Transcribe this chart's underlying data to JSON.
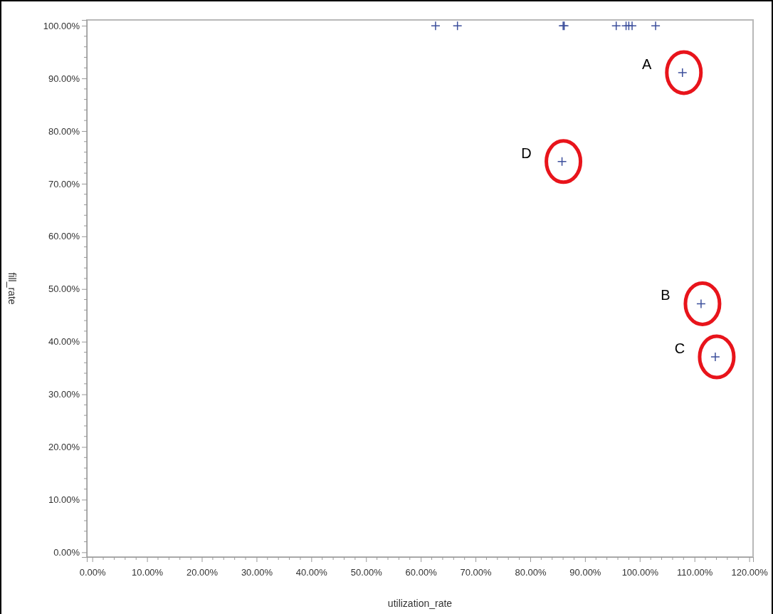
{
  "chart_data": {
    "type": "scatter",
    "xlabel": "utilization_rate",
    "ylabel": "fill_rate",
    "marker": "cross",
    "grid": false,
    "x": [
      62.7,
      66.7,
      86.0,
      86.2,
      95.7,
      97.5,
      98.0,
      98.6,
      102.9,
      107.8,
      85.8,
      111.2,
      113.8
    ],
    "series": [
      {
        "color": "#3c4f9c",
        "values": [
          100,
          100,
          100,
          100,
          100,
          100,
          100,
          100,
          100,
          91.1,
          74.2,
          47.2,
          37.1
        ]
      }
    ],
    "xlim": [
      -1,
      120.7
    ],
    "ylim": [
      -0.9,
      101.1
    ],
    "xticks": [
      {
        "value": 0,
        "label": "0.00%"
      },
      {
        "value": 10,
        "label": "10.00%"
      },
      {
        "value": 20,
        "label": "20.00%"
      },
      {
        "value": 30,
        "label": "30.00%"
      },
      {
        "value": 40,
        "label": "40.00%"
      },
      {
        "value": 50,
        "label": "50.00%"
      },
      {
        "value": 60,
        "label": "60.00%"
      },
      {
        "value": 70,
        "label": "70.00%"
      },
      {
        "value": 80,
        "label": "80.00%"
      },
      {
        "value": 90,
        "label": "90.00%"
      },
      {
        "value": 100,
        "label": "100.00%"
      },
      {
        "value": 110,
        "label": "110.00%"
      },
      {
        "value": 120,
        "label": "120.00%"
      }
    ],
    "yticks": [
      {
        "value": 0,
        "label": "0.00%"
      },
      {
        "value": 10,
        "label": "10.00%"
      },
      {
        "value": 20,
        "label": "20.00%"
      },
      {
        "value": 30,
        "label": "30.00%"
      },
      {
        "value": 40,
        "label": "40.00%"
      },
      {
        "value": 50,
        "label": "50.00%"
      },
      {
        "value": 60,
        "label": "60.00%"
      },
      {
        "value": 70,
        "label": "70.00%"
      },
      {
        "value": 80,
        "label": "80.00%"
      },
      {
        "value": 90,
        "label": "90.00%"
      },
      {
        "value": 100,
        "label": "100.00%"
      }
    ],
    "annotations": [
      {
        "text": "A",
        "x": 107.8,
        "y": 91.1
      },
      {
        "text": "D",
        "x": 85.8,
        "y": 74.2
      },
      {
        "text": "B",
        "x": 111.2,
        "y": 47.2
      },
      {
        "text": "C",
        "x": 113.8,
        "y": 37.1
      }
    ]
  }
}
